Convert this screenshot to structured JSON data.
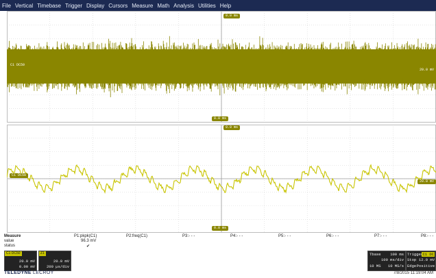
{
  "menu": [
    "File",
    "Vertical",
    "Timebase",
    "Trigger",
    "Display",
    "Cursors",
    "Measure",
    "Math",
    "Analysis",
    "Utilities",
    "Help"
  ],
  "colors": {
    "trace": "#8a8600",
    "trace_light": "#c8c400",
    "grid": "#d6d6d6",
    "axis": "#9a9a9a",
    "menubar": "#1c2a52"
  },
  "traces": {
    "top": {
      "kind": "noise-band",
      "left_marker": "C1 DC50",
      "right_marker": "20.0 mV",
      "top_marker": "0.0 ms",
      "bottom_marker": "0.0 ms"
    },
    "bottom": {
      "kind": "ripple",
      "left_marker": "C1 DC50",
      "right_marker": "20.0 mV",
      "top_marker": "0.0 ms",
      "bottom_marker": "0.0 ms"
    }
  },
  "measure": {
    "title": "Measure",
    "row_labels": [
      "value",
      "status"
    ],
    "params": [
      {
        "name": "P1:pkpk(C1)",
        "value": "96.3 mV",
        "status": "✔"
      },
      {
        "name": "P2:freq(C1)",
        "value": "",
        "status": ""
      },
      {
        "name": "P3:- - -",
        "value": "",
        "status": ""
      },
      {
        "name": "P4:- - -",
        "value": "",
        "status": ""
      },
      {
        "name": "P5:- - -",
        "value": "",
        "status": ""
      },
      {
        "name": "P6:- - -",
        "value": "",
        "status": ""
      },
      {
        "name": "P7:- - -",
        "value": "",
        "status": ""
      },
      {
        "name": "P8:- - -",
        "value": "",
        "status": ""
      }
    ]
  },
  "channels": [
    {
      "header": "C1 DC50",
      "line1": "20.0 mV",
      "line2": "0.00 mV"
    },
    {
      "header": "Z1",
      "line1": "20.0 mV",
      "line2": "200 µs/div"
    }
  ],
  "timebase": {
    "label": "Tbase",
    "value1": "100 ms",
    "value2": "100 ms/div",
    "samples": "10 MS",
    "rate": "10 MS/s"
  },
  "trigger": {
    "label": "Trigger",
    "source": "C1 DC",
    "mode": "Stop",
    "level": "12.0 mV",
    "type": "Edge",
    "slope": "Positive"
  },
  "brand": {
    "name": "TELEDYNE",
    "sub": "LECROY"
  },
  "timestamp": "7/8/2015 11:19:04 AM"
}
